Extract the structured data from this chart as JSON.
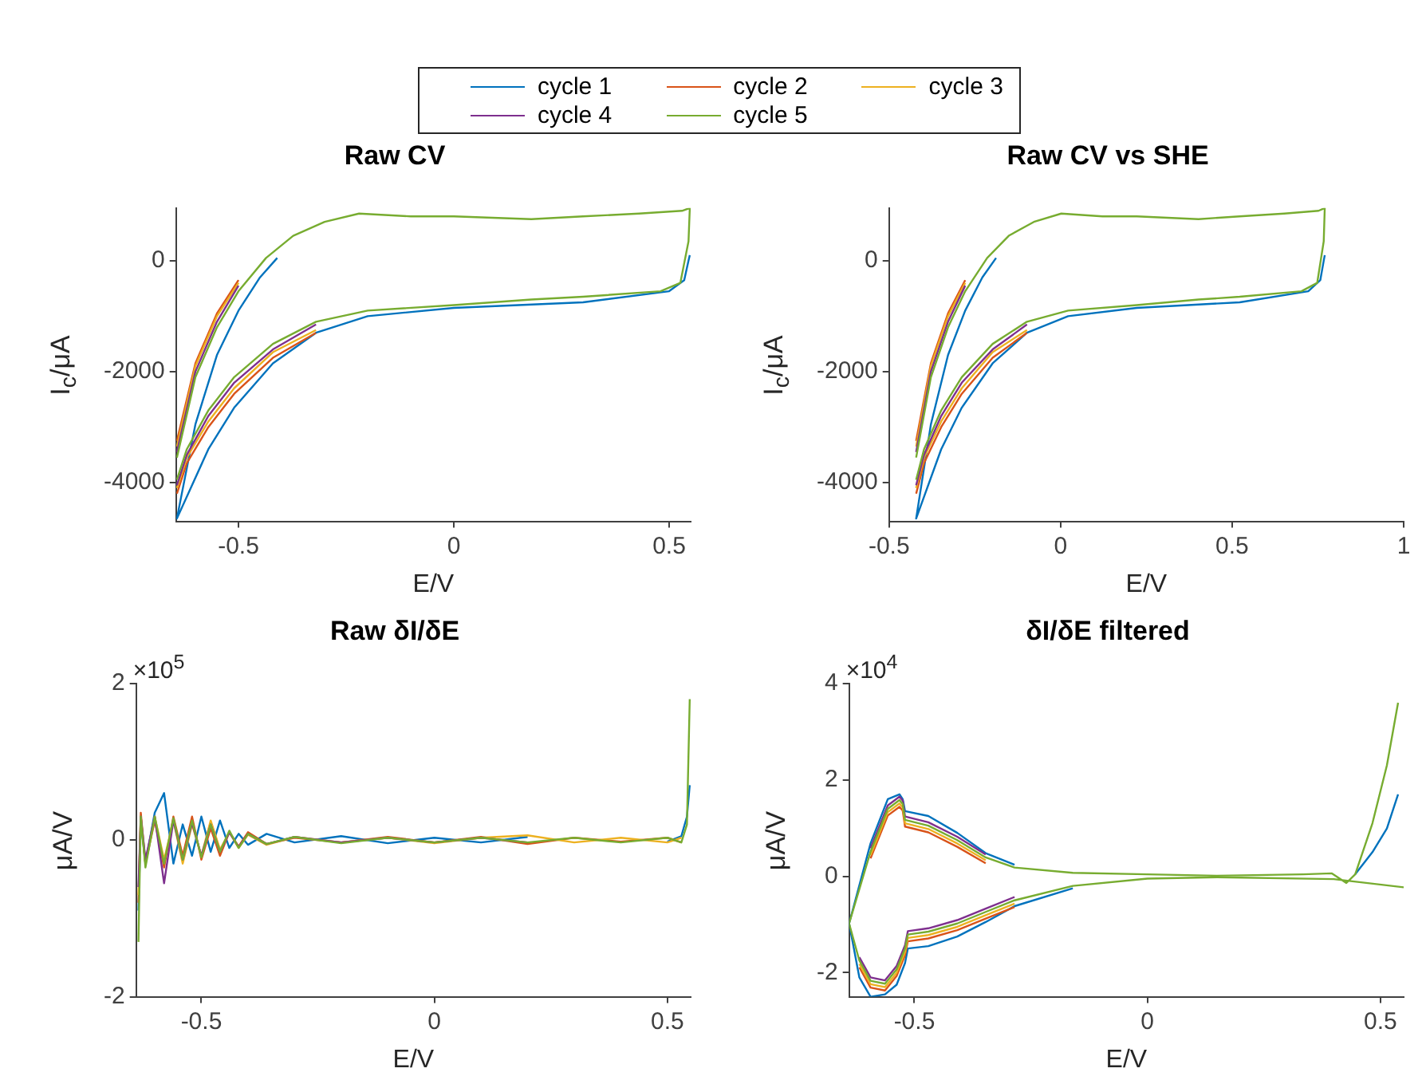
{
  "chart_data": [
    {
      "type": "line",
      "title": "Raw CV",
      "xlabel": "E/V",
      "ylabel": "I$_{c}$/μA",
      "legend": "top",
      "marker": "none",
      "line_style": "solid",
      "xlim": [
        -0.645,
        0.55
      ],
      "xticks": [
        -0.5,
        0,
        0.5
      ],
      "ylim": [
        -4700,
        950
      ],
      "yticks": [
        -4000,
        -2000,
        0
      ],
      "x": [
        -0.643,
        -0.6,
        -0.55,
        -0.5,
        -0.436,
        -0.373,
        -0.3,
        -0.22,
        -0.1,
        0,
        0.18,
        0.3,
        0.43,
        0.53,
        0.548,
        0.545,
        0.526,
        0.48,
        0.3,
        0.18,
        0,
        -0.2,
        -0.32,
        -0.42,
        -0.51,
        -0.57,
        -0.62,
        -0.643
      ],
      "series": [
        {
          "name": "cycle 1",
          "color": "#0072bd",
          "x": [
            0.548,
            0.545,
            0.535,
            0.5,
            0.3,
            0,
            -0.2,
            -0.32,
            -0.42,
            -0.51,
            -0.57,
            -0.643,
            -0.6,
            -0.55,
            -0.5,
            -0.45,
            -0.41
          ],
          "values": [
            100,
            0,
            -350,
            -550,
            -750,
            -850,
            -1000,
            -1300,
            -1850,
            -2650,
            -3400,
            -4650,
            -2950,
            -1700,
            -900,
            -300,
            50
          ]
        },
        {
          "name": "cycle 2",
          "color": "#d95319",
          "values": [
            -3250,
            -1850,
            -950,
            -350,
            null,
            null,
            null,
            null,
            null,
            null,
            null,
            null,
            null,
            null,
            null,
            null,
            null,
            null,
            null,
            null,
            null,
            null,
            -1300,
            -1750,
            -2400,
            -3000,
            -3650,
            -4200
          ]
        },
        {
          "name": "cycle 3",
          "color": "#edb120",
          "values": [
            -3350,
            -1900,
            -1000,
            -400,
            null,
            null,
            null,
            null,
            null,
            null,
            null,
            null,
            null,
            null,
            null,
            null,
            null,
            null,
            null,
            null,
            null,
            null,
            -1250,
            -1650,
            -2300,
            -2900,
            -3550,
            -4100
          ]
        },
        {
          "name": "cycle 4",
          "color": "#7e2f8e",
          "values": [
            -3450,
            -2000,
            -1100,
            -450,
            null,
            null,
            null,
            null,
            null,
            null,
            null,
            null,
            null,
            null,
            null,
            null,
            null,
            null,
            null,
            null,
            null,
            null,
            -1150,
            -1600,
            -2200,
            -2800,
            -3500,
            -4050
          ]
        },
        {
          "name": "cycle 5",
          "color": "#77ac30",
          "values": [
            -3550,
            -2100,
            -1200,
            -550,
            50,
            450,
            700,
            850,
            800,
            800,
            750,
            800,
            850,
            900,
            950,
            350,
            -400,
            -550,
            -650,
            -700,
            -800,
            -900,
            -1100,
            -1500,
            -2100,
            -2700,
            -3400,
            -3950
          ]
        }
      ]
    },
    {
      "type": "line",
      "title": "Raw CV vs SHE",
      "xlabel": "E/V",
      "ylabel": "I$_{c}$/μA",
      "marker": "none",
      "line_style": "solid",
      "xlim": [
        -0.5,
        1
      ],
      "xticks": [
        -0.5,
        0,
        0.5,
        1
      ],
      "ylim": [
        -4700,
        950
      ],
      "yticks": [
        -4000,
        -2000,
        0
      ],
      "x": [
        -0.421,
        -0.378,
        -0.328,
        -0.278,
        -0.214,
        -0.151,
        -0.078,
        0.002,
        0.122,
        0.222,
        0.402,
        0.522,
        0.652,
        0.752,
        0.77,
        0.767,
        0.748,
        0.702,
        0.522,
        0.402,
        0.222,
        0.022,
        -0.098,
        -0.198,
        -0.288,
        -0.348,
        -0.398,
        -0.421
      ],
      "series": [
        {
          "color": "#0072bd",
          "x": [
            0.77,
            0.767,
            0.757,
            0.722,
            0.522,
            0.222,
            0.022,
            -0.098,
            -0.198,
            -0.288,
            -0.348,
            -0.421,
            -0.378,
            -0.328,
            -0.278,
            -0.228,
            -0.188
          ],
          "values": [
            100,
            0,
            -350,
            -550,
            -750,
            -850,
            -1000,
            -1300,
            -1850,
            -2650,
            -3400,
            -4650,
            -2950,
            -1700,
            -900,
            -300,
            50
          ]
        },
        {
          "color": "#d95319",
          "values": [
            -3250,
            -1850,
            -950,
            -350,
            null,
            null,
            null,
            null,
            null,
            null,
            null,
            null,
            null,
            null,
            null,
            null,
            null,
            null,
            null,
            null,
            null,
            null,
            -1300,
            -1750,
            -2400,
            -3000,
            -3650,
            -4200
          ]
        },
        {
          "color": "#edb120",
          "values": [
            -3350,
            -1900,
            -1000,
            -400,
            null,
            null,
            null,
            null,
            null,
            null,
            null,
            null,
            null,
            null,
            null,
            null,
            null,
            null,
            null,
            null,
            null,
            null,
            -1250,
            -1650,
            -2300,
            -2900,
            -3550,
            -4100
          ]
        },
        {
          "color": "#7e2f8e",
          "values": [
            -3450,
            -2000,
            -1100,
            -450,
            null,
            null,
            null,
            null,
            null,
            null,
            null,
            null,
            null,
            null,
            null,
            null,
            null,
            null,
            null,
            null,
            null,
            null,
            -1150,
            -1600,
            -2200,
            -2800,
            -3500,
            -4050
          ]
        },
        {
          "color": "#77ac30",
          "values": [
            -3550,
            -2100,
            -1200,
            -550,
            50,
            450,
            700,
            850,
            800,
            800,
            750,
            800,
            850,
            900,
            950,
            350,
            -400,
            -550,
            -650,
            -700,
            -800,
            -900,
            -1100,
            -1500,
            -2100,
            -2700,
            -3400,
            -3950
          ]
        }
      ]
    },
    {
      "type": "line",
      "title": "Raw δI/δE",
      "xlabel": "E/V",
      "ylabel": "μA/V",
      "annotations": [
        "×10$^{5}$"
      ],
      "marker": "none",
      "line_style": "solid",
      "xlim": [
        -0.64,
        0.55
      ],
      "xticks": [
        -0.5,
        0,
        0.5
      ],
      "ylim": [
        -2,
        2
      ],
      "yticks": [
        -2,
        0,
        2
      ],
      "x": [
        -0.635,
        -0.63,
        -0.62,
        -0.6,
        -0.58,
        -0.56,
        -0.54,
        -0.52,
        -0.5,
        -0.48,
        -0.46,
        -0.44,
        -0.42,
        -0.4,
        -0.36,
        -0.3,
        -0.2,
        -0.1,
        0,
        0.1,
        0.2,
        0.3,
        0.4,
        0.5,
        0.53,
        0.542,
        0.548
      ],
      "series": [
        {
          "color": "#0072bd",
          "values": [
            -0.9,
            0.25,
            -0.3,
            0.35,
            0.6,
            -0.3,
            0.2,
            -0.2,
            0.3,
            -0.15,
            0.25,
            -0.1,
            0.08,
            -0.06,
            0.08,
            -0.03,
            0.05,
            -0.04,
            0.03,
            -0.03,
            0.04,
            null,
            null,
            -0.02,
            0.05,
            0.3,
            0.7
          ]
        },
        {
          "color": "#d95319",
          "values": [
            -0.8,
            0.35,
            -0.3,
            0.25,
            -0.35,
            0.3,
            -0.2,
            0.3,
            -0.25,
            0.15,
            -0.2,
            0.1,
            -0.08,
            0.1,
            -0.05,
            0.03,
            -0.03,
            0.04,
            -0.03,
            0.04,
            -0.05,
            0.03,
            -0.02,
            0.03,
            -0.03,
            null,
            null
          ]
        },
        {
          "color": "#edb120",
          "values": [
            -0.7,
            0.3,
            -0.3,
            0.3,
            -0.25,
            0.25,
            -0.3,
            0.2,
            -0.2,
            0.25,
            -0.12,
            0.1,
            -0.1,
            0.07,
            -0.06,
            0.04,
            -0.03,
            0.03,
            -0.04,
            0.03,
            0.06,
            -0.03,
            0.03,
            -0.03,
            0.03,
            null,
            null
          ]
        },
        {
          "color": "#7e2f8e",
          "values": [
            -0.6,
            0.3,
            -0.25,
            0.3,
            -0.55,
            0.25,
            -0.25,
            0.22,
            -0.2,
            0.2,
            -0.15,
            0.1,
            -0.09,
            0.08,
            -0.05,
            0.04,
            -0.03,
            0.03,
            -0.03,
            0.03,
            -0.03,
            null,
            null,
            null,
            null,
            null,
            null
          ]
        },
        {
          "color": "#77ac30",
          "values": [
            -1.3,
            0.3,
            -0.35,
            0.3,
            -0.3,
            0.28,
            -0.25,
            0.25,
            -0.22,
            0.2,
            -0.15,
            0.12,
            -0.1,
            0.08,
            -0.05,
            0.04,
            -0.04,
            0.03,
            -0.03,
            0.03,
            -0.03,
            0.03,
            -0.03,
            0.03,
            -0.03,
            0.2,
            1.8
          ]
        }
      ]
    },
    {
      "type": "line",
      "title": "δI/δE filtered",
      "xlabel": "E/V",
      "ylabel": "μA/V",
      "annotations": [
        "×10$^{4}$"
      ],
      "marker": "none",
      "line_style": "solid",
      "xlim": [
        -0.64,
        0.55
      ],
      "xticks": [
        -0.5,
        0,
        0.5
      ],
      "ylim": [
        -2.5,
        4
      ],
      "yticks": [
        -2,
        0,
        2,
        4
      ],
      "x": [
        0.55,
        0.4,
        0.15,
        0,
        -0.16,
        -0.285,
        -0.347,
        -0.408,
        -0.47,
        -0.514,
        -0.52,
        -0.538,
        -0.563,
        -0.594,
        -0.618,
        -0.64,
        -0.594,
        -0.557,
        -0.532,
        -0.525,
        -0.52,
        -0.47,
        -0.408,
        -0.347,
        -0.285,
        -0.16,
        0,
        0.149,
        0.334,
        0.396,
        0.427,
        0.446,
        0.483,
        0.514,
        0.538
      ],
      "series": [
        {
          "color": "#0072bd",
          "values": [
            null,
            null,
            null,
            null,
            -0.25,
            -0.62,
            -0.95,
            -1.25,
            -1.45,
            -1.5,
            -1.8,
            -2.25,
            -2.45,
            -2.5,
            -2.1,
            -0.98,
            0.68,
            1.6,
            1.7,
            1.6,
            1.35,
            1.25,
            0.9,
            0.48,
            0.24,
            null,
            null,
            null,
            null,
            null,
            null,
            0.04,
            0.5,
            0.99,
            1.7
          ]
        },
        {
          "color": "#d95319",
          "values": [
            null,
            null,
            null,
            null,
            null,
            -0.64,
            -0.88,
            -1.12,
            -1.29,
            -1.35,
            -1.64,
            -2.07,
            -2.37,
            -2.31,
            -1.89,
            null,
            0.37,
            1.26,
            1.44,
            1.36,
            1.03,
            0.91,
            0.61,
            0.27,
            null,
            null,
            null,
            null,
            null,
            null,
            null,
            null,
            null,
            null,
            null
          ]
        },
        {
          "color": "#edb120",
          "values": [
            null,
            null,
            null,
            null,
            null,
            -0.57,
            -0.81,
            -1.05,
            -1.22,
            -1.28,
            -1.57,
            -2.0,
            -2.3,
            -2.24,
            -1.82,
            null,
            0.44,
            1.33,
            1.51,
            1.43,
            1.1,
            0.98,
            0.68,
            0.33,
            null,
            null,
            null,
            null,
            null,
            null,
            null,
            null,
            null,
            null,
            null
          ]
        },
        {
          "color": "#7e2f8e",
          "values": [
            null,
            null,
            null,
            null,
            null,
            -0.43,
            -0.67,
            -0.91,
            -1.08,
            -1.14,
            -1.43,
            -1.86,
            -2.16,
            -2.1,
            -1.68,
            null,
            0.58,
            1.47,
            1.65,
            1.57,
            1.24,
            1.12,
            0.82,
            0.45,
            null,
            null,
            null,
            null,
            null,
            null,
            null,
            null,
            null,
            null,
            null
          ]
        },
        {
          "color": "#77ac30",
          "values": [
            -0.23,
            -0.06,
            -0.02,
            -0.05,
            -0.2,
            -0.5,
            -0.74,
            -0.98,
            -1.15,
            -1.21,
            -1.5,
            -1.93,
            -2.23,
            -2.17,
            -1.75,
            -0.98,
            0.51,
            1.4,
            1.58,
            1.5,
            1.17,
            1.05,
            0.75,
            0.39,
            0.18,
            0.07,
            0.04,
            0.01,
            0.04,
            0.06,
            -0.14,
            0.04,
            1.1,
            2.3,
            3.6
          ]
        }
      ]
    }
  ]
}
